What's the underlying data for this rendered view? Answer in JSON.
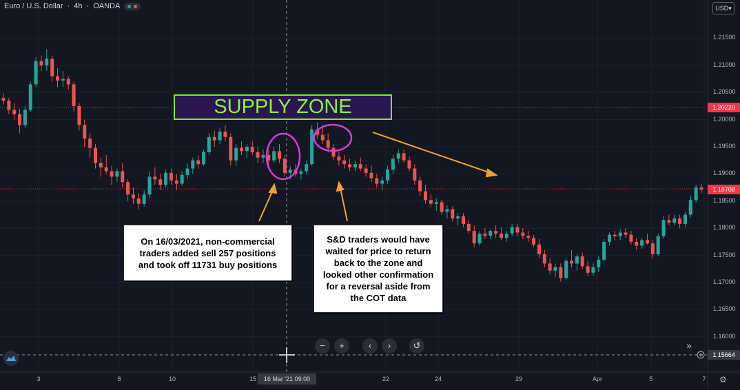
{
  "header": {
    "symbol": "Euro / U.S. Dollar",
    "separator": "·",
    "interval": "4h",
    "broker": "OANDA",
    "status_colors": [
      "#26a69a",
      "#ef5350"
    ]
  },
  "currency": {
    "label": "USD",
    "icon": "chevron-down-icon"
  },
  "price_axis": {
    "ticks": [
      "1.21500",
      "1.21000",
      "1.20500",
      "1.20000",
      "1.19500",
      "1.19000",
      "1.18500",
      "1.18000",
      "1.17500",
      "1.17000",
      "1.16500",
      "1.16000"
    ],
    "tags": [
      {
        "label": "1.20220",
        "color": "#f23645"
      },
      {
        "label": "1.18708",
        "color": "#f23645"
      },
      {
        "label": "1.15664",
        "color": "#363a45"
      }
    ]
  },
  "time_axis": {
    "ticks": [
      "3",
      "8",
      "10",
      "15",
      "22",
      "24",
      "29",
      "Apr",
      "5",
      "7"
    ],
    "crosshair_label": "16 Mar '21   09:00"
  },
  "annotations": {
    "supply_zone": "SUPPLY ZONE",
    "note_cot": [
      "On 16/03/2021, non-commercial",
      "traders added sell 257 positions",
      "and took off 11731 buy positions"
    ],
    "note_sd": [
      "S&D traders would have",
      "waited for price to return",
      "back to the zone and",
      "looked other confirmation",
      "for a reversal aside from",
      "the COT data"
    ]
  },
  "controls": {
    "zoom_out": "−",
    "zoom_in": "+",
    "scroll_left": "‹",
    "scroll_right": "›",
    "reset": "↺",
    "go_to_realtime": "»"
  },
  "chart_data": {
    "type": "candlestick",
    "series_name": "EUR/USD",
    "up_color": "#26a69a",
    "down_color": "#ef5350",
    "ylim": [
      1.1535,
      1.2195
    ],
    "x_label_order": [
      "3",
      "8",
      "10",
      "15",
      "22",
      "24",
      "29",
      "Apr",
      "5",
      "7"
    ],
    "candles": [
      [
        1.204,
        1.2048,
        1.2028,
        1.2035
      ],
      [
        1.2035,
        1.204,
        1.201,
        1.2018
      ],
      [
        1.2018,
        1.203,
        1.2,
        1.201
      ],
      [
        1.201,
        1.202,
        1.1975,
        1.199
      ],
      [
        1.199,
        1.2025,
        1.1985,
        1.2018
      ],
      [
        1.2018,
        1.207,
        1.2015,
        1.2065
      ],
      [
        1.2065,
        1.2115,
        1.206,
        1.2108
      ],
      [
        1.2108,
        1.2118,
        1.209,
        1.21
      ],
      [
        1.21,
        1.213,
        1.209,
        1.2112
      ],
      [
        1.2112,
        1.2118,
        1.207,
        1.208
      ],
      [
        1.208,
        1.2095,
        1.206,
        1.2072
      ],
      [
        1.2072,
        1.209,
        1.206,
        1.2075
      ],
      [
        1.2075,
        1.208,
        1.2055,
        1.2065
      ],
      [
        1.2065,
        1.207,
        1.2015,
        1.2025
      ],
      [
        1.2025,
        1.203,
        1.198,
        1.199
      ],
      [
        1.199,
        1.2,
        1.195,
        1.1965
      ],
      [
        1.1965,
        1.1975,
        1.193,
        1.1948
      ],
      [
        1.1948,
        1.1955,
        1.191,
        1.192
      ],
      [
        1.192,
        1.193,
        1.1895,
        1.1912
      ],
      [
        1.1912,
        1.1935,
        1.19,
        1.1905
      ],
      [
        1.1905,
        1.1915,
        1.188,
        1.1895
      ],
      [
        1.1895,
        1.191,
        1.1885,
        1.1905
      ],
      [
        1.1905,
        1.192,
        1.1875,
        1.1885
      ],
      [
        1.1885,
        1.189,
        1.185,
        1.1862
      ],
      [
        1.1862,
        1.1875,
        1.1845,
        1.1855
      ],
      [
        1.1855,
        1.1865,
        1.1835,
        1.1845
      ],
      [
        1.1845,
        1.187,
        1.184,
        1.1862
      ],
      [
        1.1862,
        1.1905,
        1.1855,
        1.1895
      ],
      [
        1.1895,
        1.1912,
        1.188,
        1.189
      ],
      [
        1.189,
        1.19,
        1.187,
        1.188
      ],
      [
        1.188,
        1.1908,
        1.1875,
        1.1902
      ],
      [
        1.1902,
        1.191,
        1.188,
        1.1888
      ],
      [
        1.1888,
        1.19,
        1.187,
        1.1882
      ],
      [
        1.1882,
        1.1905,
        1.1878,
        1.1898
      ],
      [
        1.1898,
        1.192,
        1.189,
        1.191
      ],
      [
        1.191,
        1.193,
        1.19,
        1.1925
      ],
      [
        1.1925,
        1.1935,
        1.191,
        1.1918
      ],
      [
        1.1918,
        1.1945,
        1.1915,
        1.194
      ],
      [
        1.194,
        1.1975,
        1.1935,
        1.1968
      ],
      [
        1.1968,
        1.198,
        1.195,
        1.1962
      ],
      [
        1.1962,
        1.1985,
        1.1955,
        1.1978
      ],
      [
        1.1978,
        1.199,
        1.196,
        1.1968
      ],
      [
        1.1968,
        1.1975,
        1.1915,
        1.1925
      ],
      [
        1.1925,
        1.1955,
        1.1915,
        1.1948
      ],
      [
        1.1948,
        1.196,
        1.1935,
        1.1942
      ],
      [
        1.1942,
        1.1955,
        1.193,
        1.195
      ],
      [
        1.195,
        1.196,
        1.1935,
        1.194
      ],
      [
        1.194,
        1.195,
        1.192,
        1.193
      ],
      [
        1.193,
        1.1945,
        1.192,
        1.1935
      ],
      [
        1.1935,
        1.1945,
        1.1915,
        1.1925
      ],
      [
        1.1925,
        1.195,
        1.192,
        1.1942
      ],
      [
        1.1942,
        1.1955,
        1.192,
        1.1928
      ],
      [
        1.1928,
        1.1935,
        1.1895,
        1.1902
      ],
      [
        1.1902,
        1.1915,
        1.189,
        1.1908
      ],
      [
        1.1908,
        1.1918,
        1.1895,
        1.19
      ],
      [
        1.19,
        1.191,
        1.189,
        1.1905
      ],
      [
        1.1905,
        1.1925,
        1.19,
        1.1918
      ],
      [
        1.1918,
        1.199,
        1.1915,
        1.1982
      ],
      [
        1.1982,
        1.1995,
        1.1965,
        1.1972
      ],
      [
        1.1972,
        1.199,
        1.1955,
        1.1962
      ],
      [
        1.1962,
        1.1975,
        1.194,
        1.1948
      ],
      [
        1.1948,
        1.1955,
        1.1925,
        1.1932
      ],
      [
        1.1932,
        1.194,
        1.1915,
        1.1925
      ],
      [
        1.1925,
        1.1935,
        1.191,
        1.1918
      ],
      [
        1.1918,
        1.1928,
        1.1905,
        1.1912
      ],
      [
        1.1912,
        1.1925,
        1.1905,
        1.1918
      ],
      [
        1.1918,
        1.193,
        1.1905,
        1.191
      ],
      [
        1.191,
        1.1918,
        1.1895,
        1.1902
      ],
      [
        1.1902,
        1.1915,
        1.1885,
        1.1892
      ],
      [
        1.1892,
        1.19,
        1.1875,
        1.1882
      ],
      [
        1.1882,
        1.1895,
        1.187,
        1.1888
      ],
      [
        1.1888,
        1.1915,
        1.1882,
        1.1908
      ],
      [
        1.1908,
        1.1935,
        1.19,
        1.1928
      ],
      [
        1.1928,
        1.1945,
        1.192,
        1.1938
      ],
      [
        1.1938,
        1.1945,
        1.192,
        1.1925
      ],
      [
        1.1925,
        1.1932,
        1.1905,
        1.191
      ],
      [
        1.191,
        1.1918,
        1.188,
        1.1888
      ],
      [
        1.1888,
        1.1895,
        1.186,
        1.1868
      ],
      [
        1.1868,
        1.188,
        1.1845,
        1.1852
      ],
      [
        1.1852,
        1.1862,
        1.1838,
        1.1845
      ],
      [
        1.1845,
        1.1855,
        1.1832,
        1.1848
      ],
      [
        1.1848,
        1.1852,
        1.1825,
        1.183
      ],
      [
        1.183,
        1.1842,
        1.1818,
        1.1835
      ],
      [
        1.1835,
        1.184,
        1.1812,
        1.1818
      ],
      [
        1.1818,
        1.1828,
        1.1805,
        1.1822
      ],
      [
        1.1822,
        1.1828,
        1.1802,
        1.1808
      ],
      [
        1.1808,
        1.1815,
        1.179,
        1.1795
      ],
      [
        1.1795,
        1.1805,
        1.1765,
        1.1772
      ],
      [
        1.1772,
        1.1795,
        1.1768,
        1.179
      ],
      [
        1.179,
        1.18,
        1.178,
        1.1786
      ],
      [
        1.1786,
        1.1798,
        1.178,
        1.1795
      ],
      [
        1.1795,
        1.1805,
        1.1782,
        1.179
      ],
      [
        1.179,
        1.1802,
        1.1778,
        1.1782
      ],
      [
        1.1782,
        1.1795,
        1.1775,
        1.179
      ],
      [
        1.179,
        1.1808,
        1.1785,
        1.1802
      ],
      [
        1.1802,
        1.1808,
        1.1785,
        1.1792
      ],
      [
        1.1792,
        1.18,
        1.178,
        1.1786
      ],
      [
        1.1786,
        1.1795,
        1.1775,
        1.1782
      ],
      [
        1.1782,
        1.1788,
        1.1765,
        1.177
      ],
      [
        1.177,
        1.178,
        1.1745,
        1.1752
      ],
      [
        1.1752,
        1.176,
        1.1728,
        1.1735
      ],
      [
        1.1735,
        1.1745,
        1.1715,
        1.1722
      ],
      [
        1.1722,
        1.1735,
        1.171,
        1.1728
      ],
      [
        1.1728,
        1.1735,
        1.1702,
        1.1708
      ],
      [
        1.1708,
        1.1745,
        1.1705,
        1.174
      ],
      [
        1.174,
        1.176,
        1.1728,
        1.1735
      ],
      [
        1.1735,
        1.1752,
        1.1722,
        1.1748
      ],
      [
        1.1748,
        1.1755,
        1.1725,
        1.173
      ],
      [
        1.173,
        1.174,
        1.1712,
        1.1718
      ],
      [
        1.1718,
        1.1735,
        1.1712,
        1.1728
      ],
      [
        1.1728,
        1.1748,
        1.172,
        1.1742
      ],
      [
        1.1742,
        1.178,
        1.1738,
        1.1775
      ],
      [
        1.1775,
        1.1792,
        1.1768,
        1.1788
      ],
      [
        1.1788,
        1.1795,
        1.1778,
        1.1785
      ],
      [
        1.1785,
        1.1798,
        1.1778,
        1.1792
      ],
      [
        1.1792,
        1.18,
        1.1782,
        1.1788
      ],
      [
        1.1788,
        1.1795,
        1.177,
        1.1775
      ],
      [
        1.1775,
        1.1782,
        1.176,
        1.1768
      ],
      [
        1.1768,
        1.1782,
        1.1762,
        1.1778
      ],
      [
        1.1778,
        1.179,
        1.177,
        1.1772
      ],
      [
        1.1772,
        1.1778,
        1.1745,
        1.1752
      ],
      [
        1.1752,
        1.179,
        1.1748,
        1.1785
      ],
      [
        1.1785,
        1.1822,
        1.178,
        1.1815
      ],
      [
        1.1815,
        1.1825,
        1.1805,
        1.181
      ],
      [
        1.181,
        1.1825,
        1.1805,
        1.1818
      ],
      [
        1.1818,
        1.1825,
        1.18,
        1.1808
      ],
      [
        1.1808,
        1.183,
        1.1802,
        1.1825
      ],
      [
        1.1825,
        1.186,
        1.182,
        1.1852
      ],
      [
        1.1852,
        1.188,
        1.1848,
        1.1875
      ],
      [
        1.1875,
        1.1882,
        1.1865,
        1.1871
      ]
    ]
  }
}
